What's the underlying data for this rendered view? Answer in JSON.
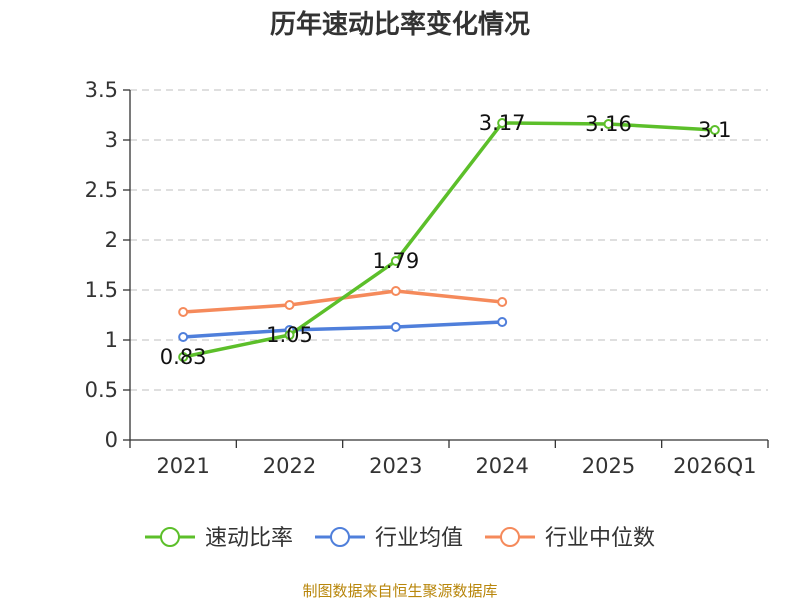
{
  "chart_data": {
    "type": "line",
    "title": "历年速动比率变化情况",
    "categories": [
      "2021",
      "2022",
      "2023",
      "2024",
      "2025",
      "2026Q1"
    ],
    "ylim": [
      0,
      3.5
    ],
    "yticks": [
      0,
      0.5,
      1,
      1.5,
      2,
      2.5,
      3,
      3.5
    ],
    "ytick_labels": [
      "0",
      "0.5",
      "1",
      "1.5",
      "2",
      "2.5",
      "3",
      "3.5"
    ],
    "grid": true,
    "legend_position": "bottom",
    "series": [
      {
        "name": "速动比率",
        "color": "#5cbf2a",
        "values": [
          0.83,
          1.05,
          1.79,
          3.17,
          3.16,
          3.1
        ],
        "labels": [
          "0.83",
          "1.05",
          "1.79",
          "3.17",
          "3.16",
          "3.1"
        ]
      },
      {
        "name": "行业均值",
        "color": "#4f7fdb",
        "values": [
          1.03,
          1.1,
          1.13,
          1.18,
          null,
          null
        ]
      },
      {
        "name": "行业中位数",
        "color": "#f58a5b",
        "values": [
          1.28,
          1.35,
          1.49,
          1.38,
          null,
          null
        ]
      }
    ]
  },
  "source": "制图数据来自恒生聚源数据库"
}
